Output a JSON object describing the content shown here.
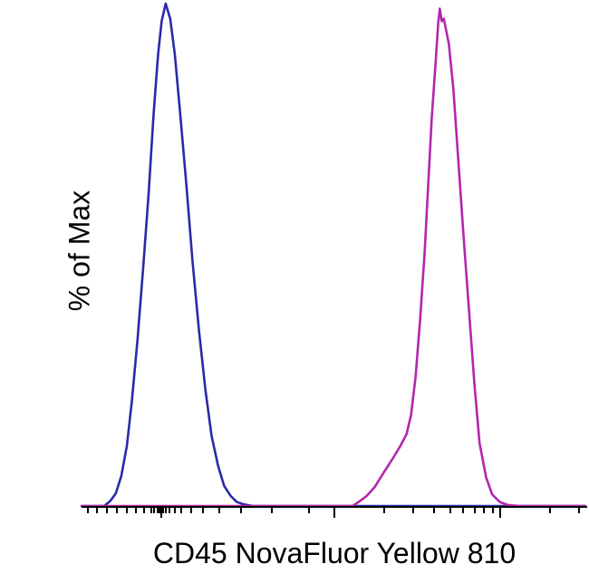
{
  "figure": {
    "background": "#ffffff",
    "axis_color": "#000000"
  },
  "chart_data": {
    "type": "line",
    "subtype": "flow-cytometry-histogram-overlay",
    "title": "",
    "xlabel": "CD45 NovaFluor Yellow 810",
    "ylabel": "% of Max",
    "x_axis": {
      "scale": "biexponential-log",
      "tick_labels_visible": false
    },
    "ylim": [
      0,
      100
    ],
    "grid": false,
    "legend": "none",
    "x_ticks_major_pct": [
      15.8,
      50.0,
      82.8
    ],
    "x_ticks_minor_pct": [
      1.2,
      3.0,
      5.0,
      7.0,
      9.0,
      10.8,
      12.4,
      13.8,
      14.4,
      15.0,
      15.4,
      16.1,
      16.6,
      17.4,
      18.4,
      19.8,
      21.6,
      24.0,
      27.2,
      31.6,
      37.6,
      45.0,
      59.9,
      65.6,
      69.7,
      72.9,
      75.5,
      77.8,
      79.6,
      81.3,
      92.7,
      98.4
    ],
    "series": [
      {
        "name": "blue",
        "color": "#2a2aa8",
        "peak_x_pct": 16.7,
        "peak_y_pct_of_max": 100,
        "points": [
          [
            0,
            0
          ],
          [
            4.5,
            0
          ],
          [
            5.7,
            1
          ],
          [
            6.8,
            2.5
          ],
          [
            7.9,
            6
          ],
          [
            9.0,
            12
          ],
          [
            10.0,
            21
          ],
          [
            11.1,
            33
          ],
          [
            12.2,
            47
          ],
          [
            13.3,
            62
          ],
          [
            14.3,
            78
          ],
          [
            15.2,
            90
          ],
          [
            15.9,
            96.5
          ],
          [
            16.7,
            100
          ],
          [
            17.6,
            97
          ],
          [
            18.5,
            90
          ],
          [
            19.5,
            79
          ],
          [
            20.8,
            64
          ],
          [
            22.0,
            49
          ],
          [
            23.3,
            35
          ],
          [
            24.6,
            23
          ],
          [
            25.8,
            14
          ],
          [
            27.1,
            8
          ],
          [
            28.3,
            4
          ],
          [
            29.6,
            2
          ],
          [
            30.8,
            0.8
          ],
          [
            32.3,
            0.3
          ],
          [
            34.0,
            0
          ],
          [
            100,
            0
          ]
        ]
      },
      {
        "name": "magenta",
        "color": "#b327ad",
        "peak_x_pct": 71.1,
        "peak_y_pct_of_max": 99,
        "points": [
          [
            0,
            0
          ],
          [
            53.8,
            0
          ],
          [
            54.7,
            0.6
          ],
          [
            56.5,
            1.9
          ],
          [
            58.2,
            3.8
          ],
          [
            60.0,
            6.7
          ],
          [
            61.8,
            9.5
          ],
          [
            63.3,
            12
          ],
          [
            64.5,
            14.3
          ],
          [
            65.4,
            18.1
          ],
          [
            66.3,
            25.7
          ],
          [
            67.2,
            37.1
          ],
          [
            68.1,
            50.5
          ],
          [
            68.8,
            63.8
          ],
          [
            69.5,
            77.1
          ],
          [
            70.3,
            88.6
          ],
          [
            70.8,
            96.2
          ],
          [
            71.1,
            99
          ],
          [
            71.5,
            96.5
          ],
          [
            71.9,
            97
          ],
          [
            72.9,
            92
          ],
          [
            73.8,
            83
          ],
          [
            74.7,
            70
          ],
          [
            75.8,
            54
          ],
          [
            76.9,
            39
          ],
          [
            78.0,
            24
          ],
          [
            79.0,
            12.5
          ],
          [
            80.3,
            5.7
          ],
          [
            81.5,
            2.3
          ],
          [
            83.0,
            0.8
          ],
          [
            84.6,
            0.2
          ],
          [
            86.9,
            0
          ],
          [
            100,
            0
          ]
        ]
      }
    ]
  }
}
